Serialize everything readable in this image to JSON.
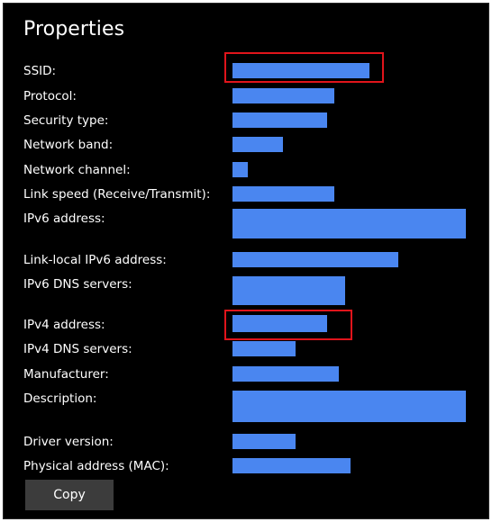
{
  "title": "Properties",
  "accent_color": "#4a86f0",
  "highlight_color": "#e0141b",
  "properties": [
    {
      "label": "SSID:",
      "highlighted": true
    },
    {
      "label": "Protocol:"
    },
    {
      "label": "Security type:"
    },
    {
      "label": "Network band:"
    },
    {
      "label": "Network channel:"
    },
    {
      "label": "Link speed (Receive/Transmit):"
    },
    {
      "label": "IPv6 address:"
    },
    {
      "label": "Link-local IPv6 address:"
    },
    {
      "label": "IPv6 DNS servers:"
    },
    {
      "label": "IPv4 address:",
      "highlighted": true
    },
    {
      "label": "IPv4 DNS servers:"
    },
    {
      "label": "Manufacturer:"
    },
    {
      "label": "Description:"
    },
    {
      "label": "Driver version:"
    },
    {
      "label": "Physical address (MAC):"
    }
  ],
  "copy_button_label": "Copy"
}
